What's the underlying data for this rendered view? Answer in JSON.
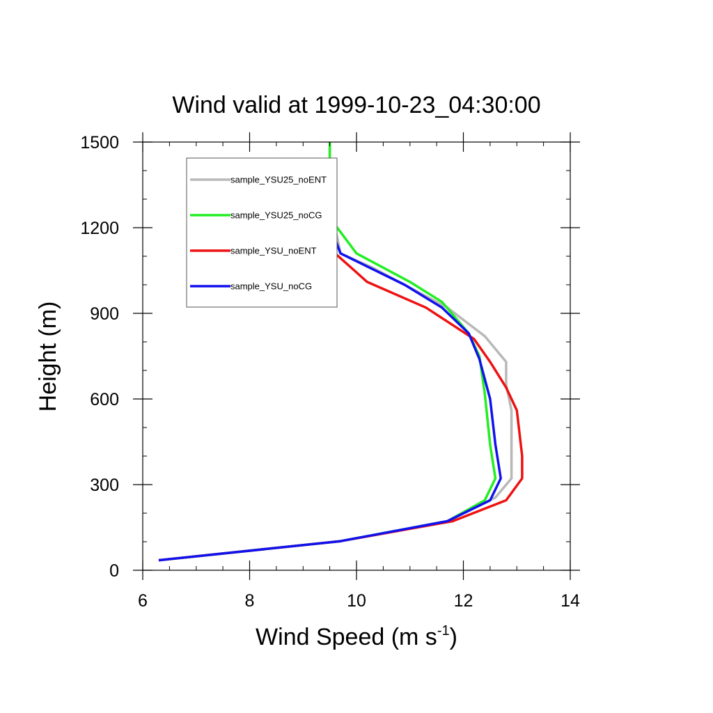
{
  "chart_data": {
    "type": "line",
    "title": "Wind valid at 1999-10-23_04:30:00",
    "xlabel": "Wind Speed (m s",
    "xlabel_superscript": "-1",
    "xlabel_suffix": ")",
    "ylabel": "Height (m)",
    "xlim": [
      6,
      14
    ],
    "ylim": [
      0,
      1500
    ],
    "x_ticks": [
      6,
      8,
      10,
      12,
      14
    ],
    "y_ticks": [
      0,
      300,
      600,
      900,
      1200,
      1500
    ],
    "grid": false,
    "legend_position": "top-left",
    "series": [
      {
        "name": "sample_YSU25_noENT",
        "color": "#b8b8b8",
        "points": [
          [
            6.3,
            35
          ],
          [
            9.7,
            102
          ],
          [
            11.7,
            172
          ],
          [
            12.6,
            255
          ],
          [
            12.9,
            322
          ],
          [
            12.9,
            400
          ],
          [
            12.9,
            560
          ],
          [
            12.8,
            650
          ],
          [
            12.8,
            730
          ],
          [
            12.4,
            820
          ],
          [
            11.7,
            920
          ],
          [
            10.3,
            1060
          ],
          [
            9.7,
            1110
          ],
          [
            9.6,
            1200
          ],
          [
            9.5,
            1300
          ],
          [
            9.5,
            1400
          ],
          [
            9.5,
            1500
          ]
        ]
      },
      {
        "name": "sample_YSU25_noCG",
        "color": "#22ee22",
        "points": [
          [
            6.3,
            35
          ],
          [
            9.7,
            102
          ],
          [
            11.7,
            172
          ],
          [
            12.4,
            245
          ],
          [
            12.6,
            322
          ],
          [
            12.5,
            440
          ],
          [
            12.4,
            620
          ],
          [
            12.3,
            750
          ],
          [
            12.1,
            830
          ],
          [
            11.6,
            940
          ],
          [
            11.0,
            1010
          ],
          [
            10.0,
            1110
          ],
          [
            9.6,
            1210
          ],
          [
            9.5,
            1300
          ],
          [
            9.5,
            1400
          ],
          [
            9.5,
            1500
          ]
        ]
      },
      {
        "name": "sample_YSU_noENT",
        "color": "#ee1111",
        "points": [
          [
            6.3,
            35
          ],
          [
            9.7,
            102
          ],
          [
            11.8,
            172
          ],
          [
            12.8,
            245
          ],
          [
            13.1,
            322
          ],
          [
            13.1,
            400
          ],
          [
            13.0,
            560
          ],
          [
            12.8,
            640
          ],
          [
            12.5,
            730
          ],
          [
            12.2,
            810
          ],
          [
            11.3,
            920
          ],
          [
            10.2,
            1010
          ],
          [
            9.6,
            1110
          ],
          [
            9.5,
            1210
          ]
        ]
      },
      {
        "name": "sample_YSU_noCG",
        "color": "#1111ee",
        "points": [
          [
            6.3,
            35
          ],
          [
            9.7,
            102
          ],
          [
            11.7,
            172
          ],
          [
            12.5,
            245
          ],
          [
            12.7,
            322
          ],
          [
            12.6,
            440
          ],
          [
            12.5,
            600
          ],
          [
            12.3,
            740
          ],
          [
            12.1,
            830
          ],
          [
            11.6,
            920
          ],
          [
            10.9,
            1000
          ],
          [
            9.7,
            1110
          ],
          [
            9.5,
            1210
          ]
        ]
      }
    ]
  }
}
